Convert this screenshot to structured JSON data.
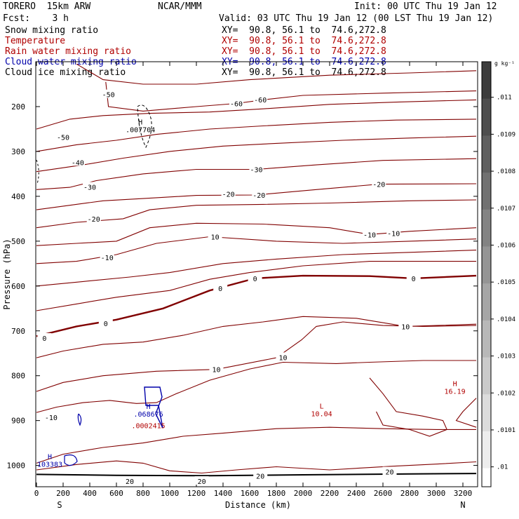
{
  "header": {
    "model": "TORERO  15km ARW",
    "agency": "NCAR/MMM",
    "init": "Init: 00 UTC Thu 19 Jan 12",
    "fcst": "Fcst:    3 h",
    "valid": "Valid: 03 UTC Thu 19 Jan 12 (00 LST Thu 19 Jan 12)"
  },
  "fields": [
    {
      "name": "Snow mixing ratio",
      "xy": "",
      "color": "#000000"
    },
    {
      "name": "Temperature",
      "xy": "XY=  90.8, 56.1 to  74.6,272.8",
      "color": "#b00000"
    },
    {
      "name": "Rain water mixing ratio",
      "xy": "XY=  90.8, 56.1 to  74.6,272.8",
      "color": "#b00000"
    },
    {
      "name": "Cloud water mixing ratio",
      "xy": "XY=  90.8, 56.1 to  74.6,272.8",
      "color": "#0000aa"
    },
    {
      "name": "Cloud ice mixing ratio",
      "xy": "XY=  90.8, 56.1 to  74.6,272.8",
      "color": "#000000"
    }
  ],
  "snow_xy": "XY=  90.8, 56.1 to  74.6,272.8",
  "colorbar": {
    "unit": "g kg⁻¹",
    "labels": [
      ".011",
      ".0109",
      ".0108",
      ".0107",
      ".0106",
      ".0105",
      ".0104",
      ".0103",
      ".0102",
      ".0101",
      ".01"
    ]
  },
  "chart_data": {
    "type": "contour",
    "xlabel": "Distance (km)",
    "ylabel": "Pressure (hPa)",
    "xlim": [
      0,
      3300
    ],
    "ylim": [
      1020,
      100
    ],
    "x_ticks": [
      0,
      200,
      400,
      600,
      800,
      1000,
      1200,
      1400,
      1600,
      1800,
      2000,
      2200,
      2400,
      2600,
      2800,
      3000,
      3200
    ],
    "y_ticks": [
      200,
      300,
      400,
      500,
      600,
      700,
      800,
      900,
      1000
    ],
    "x_end_labels": {
      "left": "S",
      "right": "N"
    },
    "temperature_labels": [
      {
        "text": "-60",
        "x": 1500,
        "y": 193
      },
      {
        "text": "-60",
        "x": 1680,
        "y": 184
      },
      {
        "text": "-50",
        "x": 200,
        "y": 268
      },
      {
        "text": "-40",
        "x": 310,
        "y": 324
      },
      {
        "text": "-30",
        "x": 400,
        "y": 379
      },
      {
        "text": "-30",
        "x": 1650,
        "y": 340
      },
      {
        "text": "-20",
        "x": 430,
        "y": 450
      },
      {
        "text": "-20",
        "x": 1440,
        "y": 395
      },
      {
        "text": "-20",
        "x": 1670,
        "y": 397
      },
      {
        "text": "-20",
        "x": 2570,
        "y": 373
      },
      {
        "text": "-10",
        "x": 530,
        "y": 536
      },
      {
        "text": "-10",
        "x": 2500,
        "y": 485
      },
      {
        "text": "-10",
        "x": 2680,
        "y": 482
      },
      {
        "text": "10",
        "x": 1340,
        "y": 490
      },
      {
        "text": "0",
        "x": 1640,
        "y": 583
      },
      {
        "text": "0",
        "x": 2830,
        "y": 583
      },
      {
        "text": "0",
        "x": 1380,
        "y": 605
      },
      {
        "text": "0",
        "x": 520,
        "y": 683
      },
      {
        "text": "0",
        "x": 60,
        "y": 716
      },
      {
        "text": "10",
        "x": 2770,
        "y": 690
      },
      {
        "text": "10",
        "x": 1850,
        "y": 759
      },
      {
        "text": "10",
        "x": 1350,
        "y": 786
      },
      {
        "text": "-10",
        "x": 110,
        "y": 893
      },
      {
        "text": "20",
        "x": 700,
        "y": 1035
      },
      {
        "text": "20",
        "x": 1240,
        "y": 1035
      },
      {
        "text": "20",
        "x": 1680,
        "y": 1023
      },
      {
        "text": "20",
        "x": 2650,
        "y": 1014
      },
      {
        "text": "-50",
        "x": 540,
        "y": 173
      }
    ],
    "extrema": [
      {
        "label": "H",
        "value": ".007704",
        "x": 780,
        "y": 240,
        "color": "#000000"
      },
      {
        "label": "L",
        "value": "10.04",
        "x": 2140,
        "y": 873,
        "color": "#b00000"
      },
      {
        "label": "H",
        "value": "16.19",
        "x": 3140,
        "y": 823,
        "color": "#b00000"
      },
      {
        "label": "H",
        "value": ".068676",
        "x": 840,
        "y": 874,
        "color": "#0000aa"
      },
      {
        "label": "",
        "value": ".0002415",
        "x": 840,
        "y": 900,
        "color": "#b00000"
      },
      {
        "label": "H",
        "value": "103383",
        "x": 100,
        "y": 986,
        "color": "#0000aa"
      }
    ]
  }
}
